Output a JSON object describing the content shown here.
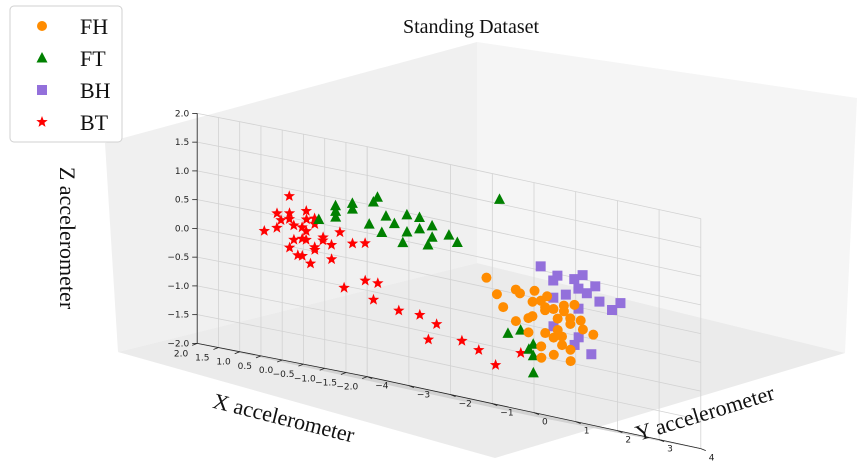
{
  "chart_data": {
    "type": "scatter",
    "projection": "3d",
    "title": "Standing Dataset",
    "xlabel": "X accelerometer",
    "ylabel": "Y accelerometer",
    "zlabel": "Z accelerometer",
    "xlim": [
      -2.0,
      2.0
    ],
    "ylim": [
      -4,
      4
    ],
    "zlim": [
      -2.0,
      2.0
    ],
    "x_ticks": [
      "2.0",
      "1.5",
      "1.0",
      "0.5",
      "0.0",
      "−0.5",
      "−1.0",
      "−1.5",
      "−2.0"
    ],
    "y_ticks": [
      "−4",
      "−3",
      "−2",
      "−1",
      "0",
      "1",
      "2",
      "3",
      "4"
    ],
    "z_ticks": [
      "−2.0",
      "−1.5",
      "−1.0",
      "−0.5",
      "0.0",
      "0.5",
      "1.0",
      "1.5",
      "2.0"
    ],
    "grid": true,
    "legend_position": "top-left",
    "series": [
      {
        "name": "FH",
        "marker": "circle",
        "color": "#ff8c00",
        "points": [
          [
            0.1,
            1.0,
            0.2
          ],
          [
            -0.1,
            1.5,
            0.1
          ],
          [
            -0.2,
            2.0,
            0.0
          ],
          [
            -0.3,
            2.2,
            -0.1
          ],
          [
            -0.2,
            1.8,
            -0.05
          ],
          [
            -0.4,
            2.5,
            -0.2
          ],
          [
            -0.1,
            1.6,
            0.05
          ],
          [
            -0.3,
            2.0,
            -0.1
          ],
          [
            -0.5,
            2.4,
            -0.3
          ],
          [
            -0.2,
            2.1,
            -0.15
          ],
          [
            -0.6,
            2.6,
            -0.35
          ],
          [
            -0.3,
            2.3,
            -0.25
          ],
          [
            -0.4,
            2.2,
            -0.45
          ],
          [
            -0.5,
            2.0,
            -0.6
          ],
          [
            -0.6,
            1.6,
            -0.8
          ],
          [
            -0.7,
            1.8,
            -0.9
          ],
          [
            -0.8,
            1.4,
            -1.0
          ],
          [
            -0.6,
            2.1,
            -0.7
          ],
          [
            -0.4,
            1.9,
            -0.55
          ],
          [
            -0.2,
            1.7,
            -0.35
          ],
          [
            0.0,
            1.3,
            -0.25
          ],
          [
            -0.1,
            1.9,
            -0.3
          ],
          [
            -0.35,
            2.4,
            -0.1
          ],
          [
            -0.45,
            2.7,
            -0.2
          ],
          [
            -0.55,
            2.9,
            -0.4
          ],
          [
            -0.25,
            2.5,
            0.0
          ],
          [
            -0.15,
            2.2,
            0.1
          ],
          [
            -0.05,
            2.0,
            0.15
          ],
          [
            -0.5,
            2.2,
            -0.55
          ],
          [
            -0.7,
            2.2,
            -0.75
          ],
          [
            -0.9,
            2.0,
            -0.95
          ],
          [
            -0.3,
            1.6,
            -0.6
          ],
          [
            -0.2,
            1.4,
            -0.45
          ],
          [
            0.05,
            1.2,
            -0.05
          ],
          [
            -0.4,
            2.6,
            0.05
          ]
        ]
      },
      {
        "name": "FT",
        "marker": "triangle",
        "color": "#008000",
        "points": [
          [
            0.8,
            -1.5,
            0.9
          ],
          [
            1.0,
            -1.7,
            0.8
          ],
          [
            0.9,
            -1.4,
            1.0
          ],
          [
            0.7,
            -1.2,
            0.7
          ],
          [
            0.6,
            -1.0,
            0.6
          ],
          [
            0.9,
            -1.8,
            0.7
          ],
          [
            1.1,
            -1.6,
            0.9
          ],
          [
            0.5,
            -0.8,
            0.8
          ],
          [
            0.4,
            -0.6,
            0.7
          ],
          [
            0.6,
            -0.9,
            0.9
          ],
          [
            0.3,
            -0.4,
            0.8
          ],
          [
            0.2,
            -0.2,
            0.7
          ],
          [
            0.5,
            -0.5,
            1.0
          ],
          [
            0.7,
            -1.1,
            1.1
          ],
          [
            0.8,
            -0.9,
            1.2
          ],
          [
            0.4,
            -0.3,
            1.0
          ],
          [
            0.3,
            -0.1,
            0.9
          ],
          [
            0.1,
            0.1,
            0.8
          ],
          [
            0.0,
            0.2,
            0.7
          ],
          [
            1.2,
            -1.9,
            0.6
          ],
          [
            0.4,
            -0.7,
            0.5
          ],
          [
            0.2,
            -0.3,
            0.55
          ],
          [
            -0.6,
            0.6,
            1.6
          ],
          [
            -0.9,
            0.8,
            -0.6
          ],
          [
            -1.0,
            1.0,
            -0.8
          ],
          [
            -1.1,
            0.9,
            -1.0
          ],
          [
            -0.8,
            1.1,
            -0.9
          ],
          [
            -1.2,
            0.8,
            -1.3
          ],
          [
            -0.7,
            0.7,
            -0.7
          ]
        ]
      },
      {
        "name": "BH",
        "marker": "square",
        "color": "#9370db",
        "points": [
          [
            0.1,
            2.3,
            0.6
          ],
          [
            0.0,
            2.5,
            0.4
          ],
          [
            -0.2,
            2.8,
            0.5
          ],
          [
            -0.3,
            3.0,
            0.3
          ],
          [
            -0.1,
            2.7,
            0.2
          ],
          [
            -0.4,
            3.2,
            0.2
          ],
          [
            -0.2,
            3.0,
            0.6
          ],
          [
            -0.5,
            3.4,
            0.1
          ],
          [
            -0.3,
            2.8,
            0.0
          ],
          [
            0.0,
            2.6,
            0.5
          ],
          [
            -0.6,
            3.5,
            0.25
          ],
          [
            -0.4,
            3.1,
            0.45
          ],
          [
            -0.2,
            2.9,
            0.35
          ],
          [
            -0.5,
            2.6,
            -0.5
          ],
          [
            -0.6,
            2.4,
            -0.65
          ],
          [
            -0.7,
            2.7,
            -0.75
          ],
          [
            -0.3,
            2.2,
            -0.4
          ],
          [
            -0.1,
            2.4,
            0.1
          ]
        ]
      },
      {
        "name": "BT",
        "marker": "star",
        "color": "#ff0000",
        "points": [
          [
            1.6,
            -2.2,
            0.9
          ],
          [
            1.3,
            -2.5,
            0.6
          ],
          [
            1.2,
            -2.3,
            0.4
          ],
          [
            1.0,
            -2.0,
            0.3
          ],
          [
            1.4,
            -2.7,
            0.3
          ],
          [
            1.1,
            -2.4,
            0.2
          ],
          [
            1.2,
            -2.6,
            0.0
          ],
          [
            1.3,
            -2.3,
            -0.1
          ],
          [
            1.0,
            -2.2,
            0.5
          ],
          [
            0.9,
            -1.9,
            0.2
          ],
          [
            1.1,
            -2.1,
            0.1
          ],
          [
            1.5,
            -2.9,
            0.2
          ],
          [
            1.2,
            -2.0,
            0.6
          ],
          [
            1.0,
            -2.5,
            -0.1
          ],
          [
            1.4,
            -2.4,
            0.5
          ],
          [
            1.3,
            -2.1,
            0.35
          ],
          [
            0.8,
            -1.8,
            0.45
          ],
          [
            0.9,
            -2.3,
            0.05
          ],
          [
            1.1,
            -2.6,
            0.4
          ],
          [
            1.2,
            -1.8,
            0.25
          ],
          [
            1.0,
            -2.7,
            0.15
          ],
          [
            1.5,
            -2.5,
            0.45
          ],
          [
            0.7,
            -1.6,
            0.3
          ],
          [
            0.8,
            -2.0,
            -0.05
          ],
          [
            1.3,
            -2.8,
            0.55
          ],
          [
            1.1,
            -2.2,
            -0.2
          ],
          [
            0.6,
            -1.4,
            0.35
          ],
          [
            0.9,
            -2.5,
            0.55
          ],
          [
            1.2,
            -2.2,
            0.7
          ],
          [
            1.4,
            -2.0,
            0.2
          ],
          [
            0.5,
            -1.5,
            -0.3
          ],
          [
            0.4,
            -1.3,
            -0.3
          ],
          [
            0.2,
            -1.0,
            -0.7
          ],
          [
            0.0,
            -0.7,
            -0.7
          ],
          [
            -0.2,
            -0.5,
            -0.8
          ],
          [
            -0.5,
            -0.2,
            -1.0
          ],
          [
            -0.7,
            0.0,
            -1.1
          ],
          [
            -0.9,
            0.2,
            -1.3
          ],
          [
            -0.3,
            -0.8,
            -1.1
          ],
          [
            -1.1,
            0.6,
            -1.0
          ],
          [
            0.8,
            -1.7,
            -0.5
          ],
          [
            0.6,
            -1.2,
            -0.6
          ]
        ]
      }
    ]
  }
}
